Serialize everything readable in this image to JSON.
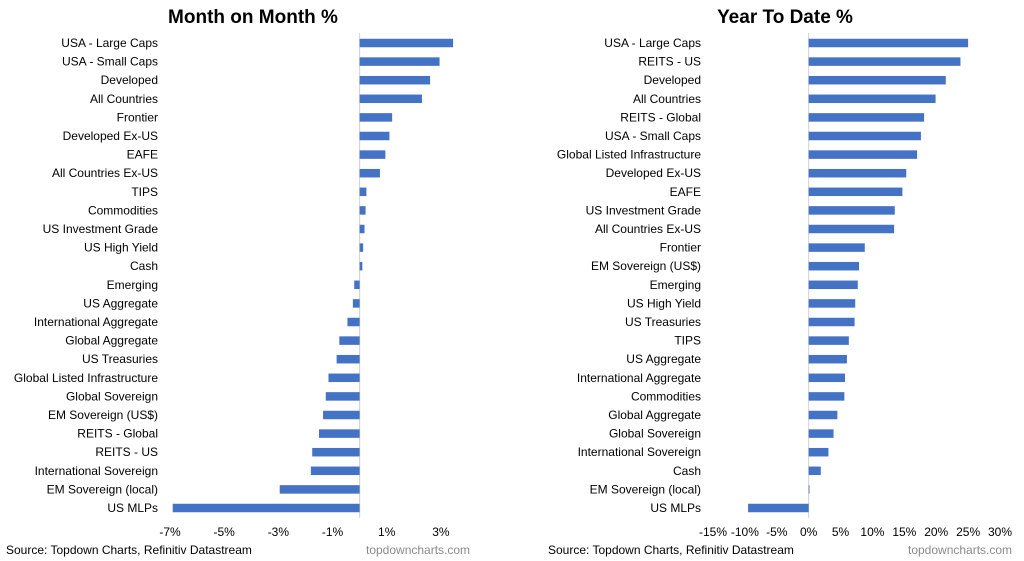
{
  "source_text": "Source: Topdown Charts, Refinitiv Datastream",
  "brand_text": "topdowncharts.com",
  "bar_color": "#4472C4",
  "chart_data": [
    {
      "type": "bar",
      "orientation": "horizontal",
      "title": "Month on Month %",
      "xlim": [
        -7,
        4
      ],
      "ticks": [
        -7,
        -5,
        -3,
        -1,
        1,
        3
      ],
      "tick_labels": [
        "-7%",
        "-5%",
        "-3%",
        "-1%",
        "1%",
        "3%"
      ],
      "categories": [
        "USA - Large Caps",
        "USA - Small Caps",
        "Developed",
        "All Countries",
        "Frontier",
        "Developed Ex-US",
        "EAFE",
        "All Countries Ex-US",
        "TIPS",
        "Commodities",
        "US Investment Grade",
        "US High Yield",
        "Cash",
        "Emerging",
        "US Aggregate",
        "International Aggregate",
        "Global Aggregate",
        "US Treasuries",
        "Global Listed Infrastructure",
        "Global Sovereign",
        "EM Sovereign (US$)",
        "REITS - Global",
        "REITS - US",
        "International Sovereign",
        "EM Sovereign (local)",
        "US MLPs"
      ],
      "values": [
        3.45,
        2.95,
        2.6,
        2.3,
        1.2,
        1.1,
        0.95,
        0.75,
        0.25,
        0.22,
        0.18,
        0.13,
        0.1,
        -0.2,
        -0.25,
        -0.45,
        -0.75,
        -0.85,
        -1.15,
        -1.25,
        -1.35,
        -1.5,
        -1.75,
        -1.8,
        -2.95,
        -6.9
      ]
    },
    {
      "type": "bar",
      "orientation": "horizontal",
      "title": "Year To Date %",
      "xlim": [
        -15,
        30
      ],
      "ticks": [
        -15,
        -10,
        -5,
        0,
        5,
        10,
        15,
        20,
        25,
        30
      ],
      "tick_labels": [
        "-15%",
        "-10%",
        "-5%",
        "0%",
        "5%",
        "10%",
        "15%",
        "20%",
        "25%",
        "30%"
      ],
      "categories": [
        "USA - Large Caps",
        "REITS - US",
        "Developed",
        "All Countries",
        "REITS - Global",
        "USA - Small Caps",
        "Global Listed Infrastructure",
        "Developed Ex-US",
        "EAFE",
        "US Investment Grade",
        "All Countries Ex-US",
        "Frontier",
        "EM Sovereign (US$)",
        "Emerging",
        "US High Yield",
        "US Treasuries",
        "TIPS",
        "US Aggregate",
        "International Aggregate",
        "Commodities",
        "Global Aggregate",
        "Global Sovereign",
        "International Sovereign",
        "Cash",
        "EM Sovereign (local)",
        "US MLPs"
      ],
      "values": [
        25,
        23.8,
        21.5,
        19.9,
        18.1,
        17.6,
        17.0,
        15.3,
        14.7,
        13.5,
        13.4,
        8.8,
        7.9,
        7.7,
        7.3,
        7.2,
        6.3,
        6.0,
        5.7,
        5.6,
        4.5,
        3.9,
        3.1,
        1.9,
        0.1,
        -9.5
      ]
    }
  ]
}
